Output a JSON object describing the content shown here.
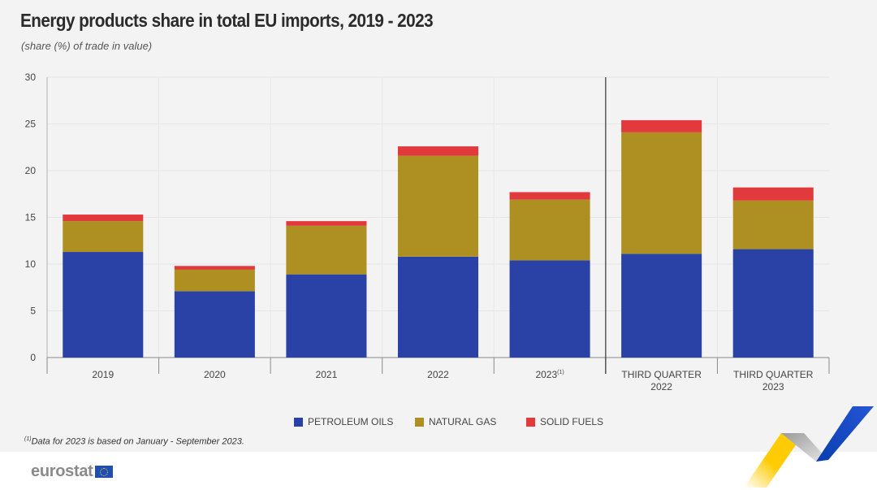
{
  "header": {
    "title": "Energy products share in total EU imports, 2019 - 2023",
    "subtitle": "(share (%) of trade in value)"
  },
  "colors": {
    "petroleum_oils": "#2a42a6",
    "natural_gas": "#ad9021",
    "solid_fuels": "#e2393c",
    "background": "#f3f3f3"
  },
  "chart_data": {
    "type": "bar",
    "stacked": true,
    "title": "Energy products share in total EU imports, 2019 - 2023",
    "subtitle": "(share (%) of trade in value)",
    "xlabel": "",
    "ylabel": "",
    "ylim": [
      0,
      30
    ],
    "yticks": [
      0,
      5,
      10,
      15,
      20,
      25,
      30
    ],
    "grid": true,
    "legend_position": "bottom",
    "categories": [
      "2019",
      "2020",
      "2021",
      "2022",
      "2023(1)",
      "THIRD QUARTER 2022",
      "THIRD QUARTER 2023"
    ],
    "category_labels": [
      {
        "lines": [
          "2019"
        ]
      },
      {
        "lines": [
          "2020"
        ]
      },
      {
        "lines": [
          "2021"
        ]
      },
      {
        "lines": [
          "2022"
        ]
      },
      {
        "lines": [
          "2023"
        ],
        "sup": "(1)"
      },
      {
        "lines": [
          "THIRD QUARTER",
          "2022"
        ]
      },
      {
        "lines": [
          "THIRD QUARTER",
          "2023"
        ]
      }
    ],
    "separator_after_index": 4,
    "series": [
      {
        "name": "PETROLEUM OILS",
        "color": "#2a42a6",
        "values": [
          11.3,
          7.1,
          8.9,
          10.8,
          10.4,
          11.1,
          11.6
        ]
      },
      {
        "name": "NATURAL GAS",
        "color": "#ad9021",
        "values": [
          3.3,
          2.3,
          5.2,
          10.8,
          6.5,
          13.0,
          5.2
        ]
      },
      {
        "name": "SOLID FUELS",
        "color": "#e2393c",
        "values": [
          0.7,
          0.4,
          0.5,
          1.0,
          0.8,
          1.3,
          1.4
        ]
      }
    ]
  },
  "legend": [
    {
      "label": "PETROLEUM OILS",
      "color": "#2a42a6"
    },
    {
      "label": "NATURAL GAS",
      "color": "#ad9021"
    },
    {
      "label": "SOLID FUELS",
      "color": "#e2393c"
    }
  ],
  "footnote": {
    "marker": "(1)",
    "text": "Data for 2023 is based on January - September 2023."
  },
  "brand": {
    "logo_text": "eurostat"
  }
}
